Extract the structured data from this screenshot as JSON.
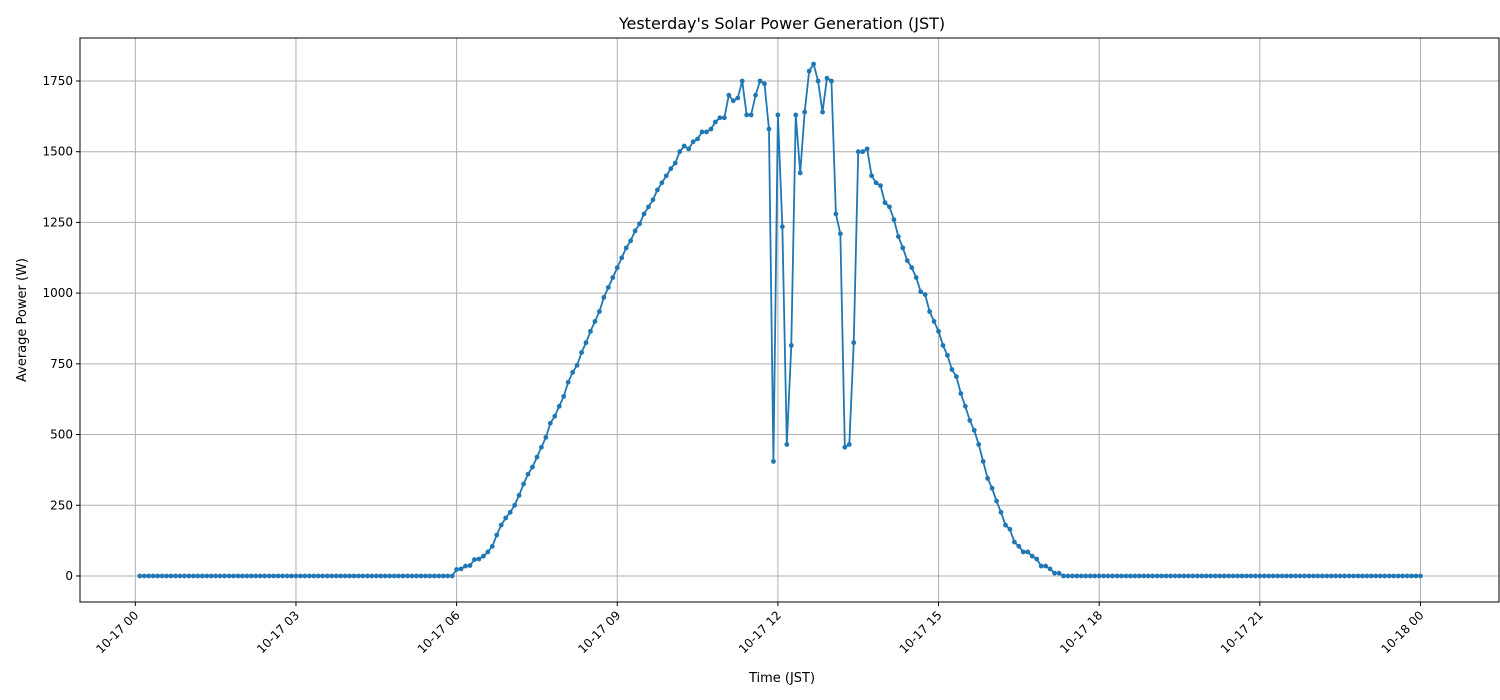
{
  "chart_data": {
    "type": "line",
    "title": "Yesterday's Solar Power Generation (JST)",
    "xlabel": "Time (JST)",
    "ylabel": "Average Power (W)",
    "grid": true,
    "marker": "circle",
    "color": "#1f77b4",
    "xlim": [
      "10-16 22:58",
      "10-18 01:28"
    ],
    "ylim": [
      -92,
      1902
    ],
    "xticks": [
      "10-17 00",
      "10-17 03",
      "10-17 06",
      "10-17 09",
      "10-17 12",
      "10-17 15",
      "10-17 18",
      "10-17 21",
      "10-18 00"
    ],
    "yticks": [
      0,
      250,
      500,
      750,
      1000,
      1250,
      1500,
      1750
    ],
    "x": [
      "10-17 00:05",
      "10-17 00:10",
      "10-17 00:15",
      "10-17 00:20",
      "10-17 00:25",
      "10-17 00:30",
      "10-17 00:35",
      "10-17 00:40",
      "10-17 00:45",
      "10-17 00:50",
      "10-17 00:55",
      "10-17 01:00",
      "10-17 01:05",
      "10-17 01:10",
      "10-17 01:15",
      "10-17 01:20",
      "10-17 01:25",
      "10-17 01:30",
      "10-17 01:35",
      "10-17 01:40",
      "10-17 01:45",
      "10-17 01:50",
      "10-17 01:55",
      "10-17 02:00",
      "10-17 02:05",
      "10-17 02:10",
      "10-17 02:15",
      "10-17 02:20",
      "10-17 02:25",
      "10-17 02:30",
      "10-17 02:35",
      "10-17 02:40",
      "10-17 02:45",
      "10-17 02:50",
      "10-17 02:55",
      "10-17 03:00",
      "10-17 03:05",
      "10-17 03:10",
      "10-17 03:15",
      "10-17 03:20",
      "10-17 03:25",
      "10-17 03:30",
      "10-17 03:35",
      "10-17 03:40",
      "10-17 03:45",
      "10-17 03:50",
      "10-17 03:55",
      "10-17 04:00",
      "10-17 04:05",
      "10-17 04:10",
      "10-17 04:15",
      "10-17 04:20",
      "10-17 04:25",
      "10-17 04:30",
      "10-17 04:35",
      "10-17 04:40",
      "10-17 04:45",
      "10-17 04:50",
      "10-17 04:55",
      "10-17 05:00",
      "10-17 05:05",
      "10-17 05:10",
      "10-17 05:15",
      "10-17 05:20",
      "10-17 05:25",
      "10-17 05:30",
      "10-17 05:35",
      "10-17 05:40",
      "10-17 05:45",
      "10-17 05:50",
      "10-17 05:55",
      "10-17 06:00",
      "10-17 06:05",
      "10-17 06:10",
      "10-17 06:15",
      "10-17 06:20",
      "10-17 06:25",
      "10-17 06:30",
      "10-17 06:35",
      "10-17 06:40",
      "10-17 06:45",
      "10-17 06:50",
      "10-17 06:55",
      "10-17 07:00",
      "10-17 07:05",
      "10-17 07:10",
      "10-17 07:15",
      "10-17 07:20",
      "10-17 07:25",
      "10-17 07:30",
      "10-17 07:35",
      "10-17 07:40",
      "10-17 07:45",
      "10-17 07:50",
      "10-17 07:55",
      "10-17 08:00",
      "10-17 08:05",
      "10-17 08:10",
      "10-17 08:15",
      "10-17 08:20",
      "10-17 08:25",
      "10-17 08:30",
      "10-17 08:35",
      "10-17 08:40",
      "10-17 08:45",
      "10-17 08:50",
      "10-17 08:55",
      "10-17 09:00",
      "10-17 09:05",
      "10-17 09:10",
      "10-17 09:15",
      "10-17 09:20",
      "10-17 09:25",
      "10-17 09:30",
      "10-17 09:35",
      "10-17 09:40",
      "10-17 09:45",
      "10-17 09:50",
      "10-17 09:55",
      "10-17 10:00",
      "10-17 10:05",
      "10-17 10:10",
      "10-17 10:15",
      "10-17 10:20",
      "10-17 10:25",
      "10-17 10:30",
      "10-17 10:35",
      "10-17 10:40",
      "10-17 10:45",
      "10-17 10:50",
      "10-17 10:55",
      "10-17 11:00",
      "10-17 11:05",
      "10-17 11:10",
      "10-17 11:15",
      "10-17 11:20",
      "10-17 11:25",
      "10-17 11:30",
      "10-17 11:35",
      "10-17 11:40",
      "10-17 11:45",
      "10-17 11:50",
      "10-17 11:55",
      "10-17 12:00",
      "10-17 12:05",
      "10-17 12:10",
      "10-17 12:15",
      "10-17 12:20",
      "10-17 12:25",
      "10-17 12:30",
      "10-17 12:35",
      "10-17 12:40",
      "10-17 12:45",
      "10-17 12:50",
      "10-17 12:55",
      "10-17 13:00",
      "10-17 13:05",
      "10-17 13:10",
      "10-17 13:15",
      "10-17 13:20",
      "10-17 13:25",
      "10-17 13:30",
      "10-17 13:35",
      "10-17 13:40",
      "10-17 13:45",
      "10-17 13:50",
      "10-17 13:55",
      "10-17 14:00",
      "10-17 14:05",
      "10-17 14:10",
      "10-17 14:15",
      "10-17 14:20",
      "10-17 14:25",
      "10-17 14:30",
      "10-17 14:35",
      "10-17 14:40",
      "10-17 14:45",
      "10-17 14:50",
      "10-17 14:55",
      "10-17 15:00",
      "10-17 15:05",
      "10-17 15:10",
      "10-17 15:15",
      "10-17 15:20",
      "10-17 15:25",
      "10-17 15:30",
      "10-17 15:35",
      "10-17 15:40",
      "10-17 15:45",
      "10-17 15:50",
      "10-17 15:55",
      "10-17 16:00",
      "10-17 16:05",
      "10-17 16:10",
      "10-17 16:15",
      "10-17 16:20",
      "10-17 16:25",
      "10-17 16:30",
      "10-17 16:35",
      "10-17 16:40",
      "10-17 16:45",
      "10-17 16:50",
      "10-17 16:55",
      "10-17 17:00",
      "10-17 17:05",
      "10-17 17:10",
      "10-17 17:15",
      "10-17 17:20",
      "10-17 17:25",
      "10-17 17:30",
      "10-17 17:35",
      "10-17 17:40",
      "10-17 17:45",
      "10-17 17:50",
      "10-17 17:55",
      "10-17 18:00",
      "10-17 18:05",
      "10-17 18:10",
      "10-17 18:15",
      "10-17 18:20",
      "10-17 18:25",
      "10-17 18:30",
      "10-17 18:35",
      "10-17 18:40",
      "10-17 18:45",
      "10-17 18:50",
      "10-17 18:55",
      "10-17 19:00",
      "10-17 19:05",
      "10-17 19:10",
      "10-17 19:15",
      "10-17 19:20",
      "10-17 19:25",
      "10-17 19:30",
      "10-17 19:35",
      "10-17 19:40",
      "10-17 19:45",
      "10-17 19:50",
      "10-17 19:55",
      "10-17 20:00",
      "10-17 20:05",
      "10-17 20:10",
      "10-17 20:15",
      "10-17 20:20",
      "10-17 20:25",
      "10-17 20:30",
      "10-17 20:35",
      "10-17 20:40",
      "10-17 20:45",
      "10-17 20:50",
      "10-17 20:55",
      "10-17 21:00",
      "10-17 21:05",
      "10-17 21:10",
      "10-17 21:15",
      "10-17 21:20",
      "10-17 21:25",
      "10-17 21:30",
      "10-17 21:35",
      "10-17 21:40",
      "10-17 21:45",
      "10-17 21:50",
      "10-17 21:55",
      "10-17 22:00",
      "10-17 22:05",
      "10-17 22:10",
      "10-17 22:15",
      "10-17 22:20",
      "10-17 22:25",
      "10-17 22:30",
      "10-17 22:35",
      "10-17 22:40",
      "10-17 22:45",
      "10-17 22:50",
      "10-17 22:55",
      "10-17 23:00",
      "10-17 23:05",
      "10-17 23:10",
      "10-17 23:15",
      "10-17 23:20",
      "10-17 23:25",
      "10-17 23:30",
      "10-17 23:35",
      "10-17 23:40",
      "10-17 23:45",
      "10-17 23:50",
      "10-17 23:55",
      "10-18 00:00"
    ],
    "y": [
      0,
      0,
      0,
      0,
      0,
      0,
      0,
      0,
      0,
      0,
      0,
      0,
      0,
      0,
      0,
      0,
      0,
      0,
      0,
      0,
      0,
      0,
      0,
      0,
      0,
      0,
      0,
      0,
      0,
      0,
      0,
      0,
      0,
      0,
      0,
      0,
      0,
      0,
      0,
      0,
      0,
      0,
      0,
      0,
      0,
      0,
      0,
      0,
      0,
      0,
      0,
      0,
      0,
      0,
      0,
      0,
      0,
      0,
      0,
      0,
      0,
      0,
      0,
      0,
      0,
      0,
      0,
      0,
      0,
      0,
      0,
      23,
      25,
      35,
      37,
      58,
      60,
      70,
      85,
      105,
      145,
      180,
      205,
      225,
      250,
      285,
      325,
      360,
      385,
      420,
      455,
      490,
      540,
      565,
      600,
      635,
      685,
      720,
      745,
      790,
      825,
      865,
      900,
      935,
      985,
      1020,
      1055,
      1090,
      1125,
      1160,
      1185,
      1220,
      1245,
      1280,
      1305,
      1330,
      1365,
      1390,
      1415,
      1440,
      1460,
      1500,
      1520,
      1510,
      1535,
      1545,
      1570,
      1570,
      1580,
      1605,
      1620,
      1620,
      1700,
      1680,
      1690,
      1750,
      1630,
      1630,
      1700,
      1750,
      1740,
      1580,
      405,
      1630,
      1235,
      465,
      815,
      1630,
      1425,
      1640,
      1785,
      1810,
      1750,
      1640,
      1760,
      1750,
      1280,
      1210,
      455,
      465,
      825,
      1500,
      1500,
      1510,
      1415,
      1390,
      1380,
      1320,
      1305,
      1260,
      1200,
      1160,
      1115,
      1090,
      1055,
      1005,
      995,
      935,
      900,
      865,
      815,
      780,
      730,
      705,
      645,
      600,
      550,
      515,
      465,
      405,
      345,
      310,
      265,
      225,
      180,
      165,
      120,
      105,
      85,
      85,
      70,
      60,
      35,
      35,
      25,
      10,
      10,
      0,
      0,
      0,
      0,
      0,
      0,
      0,
      0,
      0,
      0,
      0,
      0,
      0,
      0,
      0,
      0,
      0,
      0,
      0,
      0,
      0,
      0,
      0,
      0,
      0,
      0,
      0,
      0,
      0,
      0,
      0,
      0,
      0,
      0,
      0,
      0,
      0,
      0,
      0,
      0,
      0,
      0,
      0,
      0,
      0,
      0,
      0,
      0,
      0,
      0,
      0,
      0,
      0,
      0,
      0,
      0,
      0,
      0,
      0,
      0,
      0,
      0,
      0,
      0,
      0,
      0,
      0,
      0,
      0,
      0,
      0,
      0,
      0,
      0,
      0,
      0,
      0,
      0,
      0,
      0,
      0
    ]
  }
}
